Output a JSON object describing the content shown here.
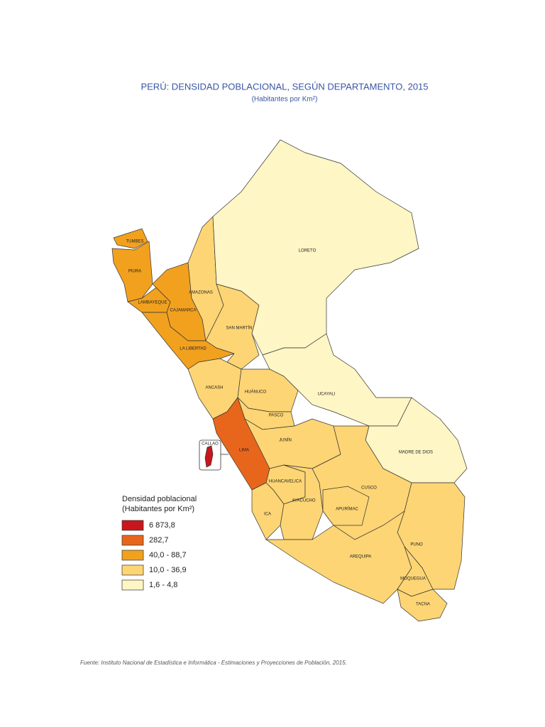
{
  "header": {
    "title": "PERÚ: DENSIDAD POBLACIONAL, SEGÚN DEPARTAMENTO, 2015",
    "subtitle": "(Habitantes por Km²)"
  },
  "legend": {
    "title": "Densidad poblacional",
    "subtitle": "(Habitantes por Km²)",
    "items": [
      {
        "label": "6 873,8",
        "color": "#c8161d"
      },
      {
        "label": "282,7",
        "color": "#e8661c"
      },
      {
        "label": "40,0 - 88,7",
        "color": "#f2a11f"
      },
      {
        "label": "10,0 - 36,9",
        "color": "#fdd574"
      },
      {
        "label": "1,6 - 4,8",
        "color": "#fef6c4"
      }
    ]
  },
  "regions": [
    {
      "label": "TUMBES",
      "color": "#f2a11f"
    },
    {
      "label": "PIURA",
      "color": "#f2a11f"
    },
    {
      "label": "LAMBAYEQUE",
      "color": "#f2a11f"
    },
    {
      "label": "CAJAMARCA",
      "color": "#f2a11f"
    },
    {
      "label": "LA LIBERTAD",
      "color": "#f2a11f"
    },
    {
      "label": "AMAZONAS",
      "color": "#fdd574"
    },
    {
      "label": "SAN MARTÍN",
      "color": "#fdd574"
    },
    {
      "label": "LORETO",
      "color": "#fef6c4"
    },
    {
      "label": "UCAYALI",
      "color": "#fef6c4"
    },
    {
      "label": "MADRE DE DIOS",
      "color": "#fef6c4"
    },
    {
      "label": "ANCASH",
      "color": "#fdd574"
    },
    {
      "label": "HUÁNUCO",
      "color": "#fdd574"
    },
    {
      "label": "PASCO",
      "color": "#fdd574"
    },
    {
      "label": "LIMA",
      "color": "#e8661c"
    },
    {
      "label": "JUNÍN",
      "color": "#fdd574"
    },
    {
      "label": "HUANCAVELICA",
      "color": "#fdd574"
    },
    {
      "label": "ICA",
      "color": "#fdd574"
    },
    {
      "label": "AYACUCHO",
      "color": "#fdd574"
    },
    {
      "label": "CUSCO",
      "color": "#fdd574"
    },
    {
      "label": "APURÍMAC",
      "color": "#fdd574"
    },
    {
      "label": "PUNO",
      "color": "#fdd574"
    },
    {
      "label": "AREQUIPA",
      "color": "#fdd574"
    },
    {
      "label": "MOQUEGUA",
      "color": "#fdd574"
    },
    {
      "label": "TACNA",
      "color": "#fdd574"
    },
    {
      "label": "CALLAO",
      "color": "#c8161d"
    }
  ],
  "source": "Fuente: Instituto Nacional de Estadística e Informática - Estimaciones y Proyecciones de Población, 2015."
}
